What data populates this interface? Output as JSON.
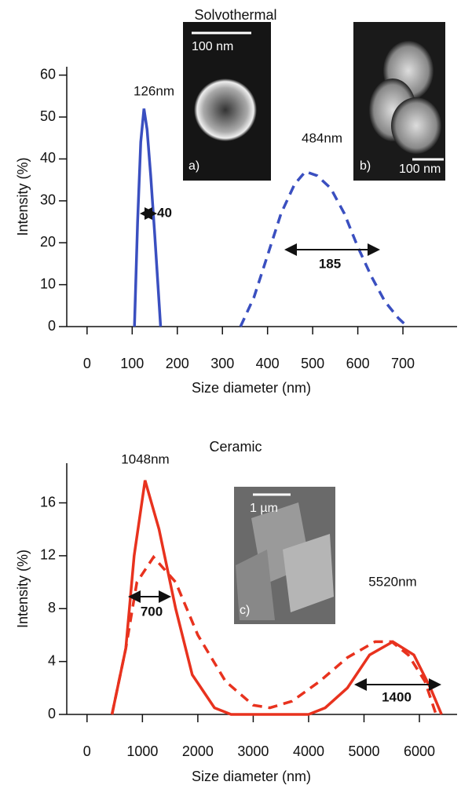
{
  "chart_data": [
    {
      "type": "line",
      "title": "Solvothermal",
      "x_label": "Size diameter (nm)",
      "y_label": "Intensity (%)",
      "xlim": [
        -45,
        820
      ],
      "xticks": [
        0,
        100,
        200,
        300,
        400,
        500,
        600,
        700
      ],
      "ylim": [
        0,
        62
      ],
      "yticks": [
        0,
        10,
        20,
        30,
        40,
        50,
        60
      ],
      "series": [
        {
          "color": "#3a4fc0",
          "linestyle": "solid",
          "x": [
            105,
            112,
            119,
            126,
            133,
            141,
            150,
            157,
            163
          ],
          "values": [
            0,
            25,
            44,
            52,
            47,
            36,
            22,
            10,
            0
          ]
        },
        {
          "color": "#3a4fc0",
          "linestyle": "dashed",
          "x": [
            340,
            370,
            400,
            430,
            460,
            484,
            510,
            540,
            570,
            600,
            630,
            660,
            690,
            710
          ],
          "values": [
            0,
            7,
            17,
            27,
            34,
            37,
            36,
            33,
            27,
            19,
            12,
            6,
            2,
            0
          ]
        }
      ],
      "annotations": [
        "126nm",
        "484nm",
        "40",
        "185"
      ],
      "insets": [
        {
          "scale": "100 nm",
          "label": "a)"
        },
        {
          "scale": "100 nm",
          "label": "b)"
        }
      ]
    },
    {
      "type": "line",
      "title": "Ceramic",
      "x_label": "Size diameter (nm)",
      "y_label": "Intensity (%)",
      "xlim": [
        -366,
        6680
      ],
      "xticks": [
        0,
        1000,
        2000,
        3000,
        4000,
        5000,
        6000
      ],
      "ylim": [
        0,
        19
      ],
      "yticks": [
        0,
        4,
        8,
        12,
        16
      ],
      "series": [
        {
          "color": "#e8321e",
          "linestyle": "solid",
          "x": [
            450,
            700,
            850,
            1048,
            1300,
            1600,
            1900,
            2300,
            2600,
            4000,
            4300,
            4700,
            5100,
            5520,
            5900,
            6200,
            6400
          ],
          "values": [
            0,
            5,
            12,
            17.7,
            14,
            8,
            3,
            0.5,
            0,
            0,
            0.5,
            2,
            4.5,
            5.5,
            4.5,
            2,
            0
          ]
        },
        {
          "color": "#e8321e",
          "linestyle": "dashed",
          "x": [
            450,
            700,
            900,
            1200,
            1600,
            2000,
            2500,
            3000,
            3300,
            3700,
            4200,
            4700,
            5200,
            5500,
            5800,
            6100,
            6300
          ],
          "values": [
            0,
            5,
            10,
            11.9,
            10,
            6,
            2.5,
            0.7,
            0.5,
            1,
            2.5,
            4.3,
            5.5,
            5.5,
            4.5,
            2.5,
            0
          ]
        }
      ],
      "annotations": [
        "1048nm",
        "5520nm",
        "700",
        "1400"
      ],
      "insets": [
        {
          "scale": "1 µm",
          "label": "c)"
        }
      ]
    }
  ]
}
